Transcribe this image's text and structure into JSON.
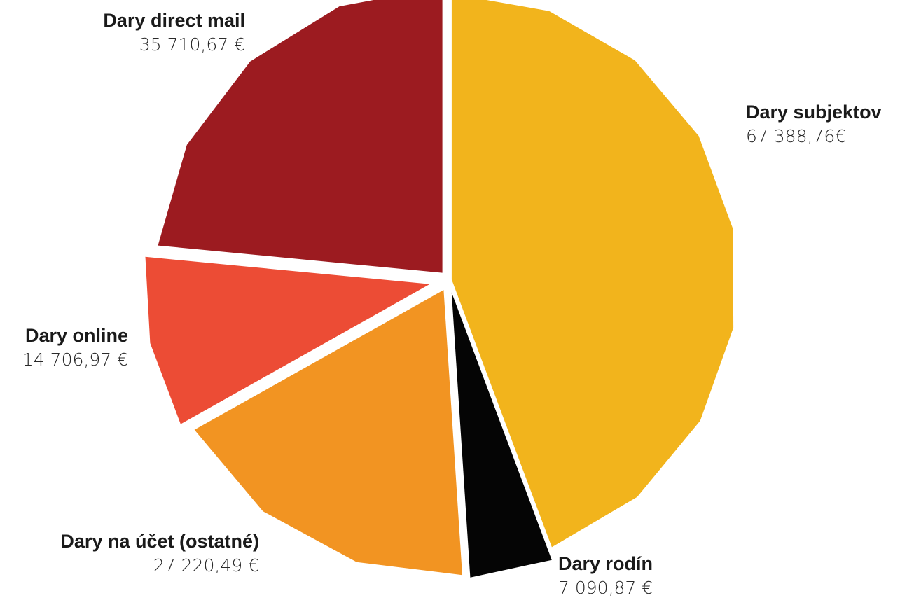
{
  "chart_data": {
    "type": "pie",
    "title": "",
    "categories": [
      "Dary subjektov",
      "Dary rodín",
      "Dary na účet (ostatné)",
      "Dary online",
      "Dary direct mail"
    ],
    "values": [
      67388.76,
      7090.87,
      27220.49,
      14706.97,
      35710.67
    ],
    "value_labels": [
      "67 388,76€",
      "7 090,87 €",
      "27 220,49 €",
      "14 706,97 €",
      "35 710,67 €"
    ],
    "colors": [
      "#F2B41C",
      "#050505",
      "#F29422",
      "#EC4C35",
      "#9C1B20"
    ],
    "legend": "none",
    "start_angle": "top",
    "direction": "clockwise",
    "exploded": true
  }
}
